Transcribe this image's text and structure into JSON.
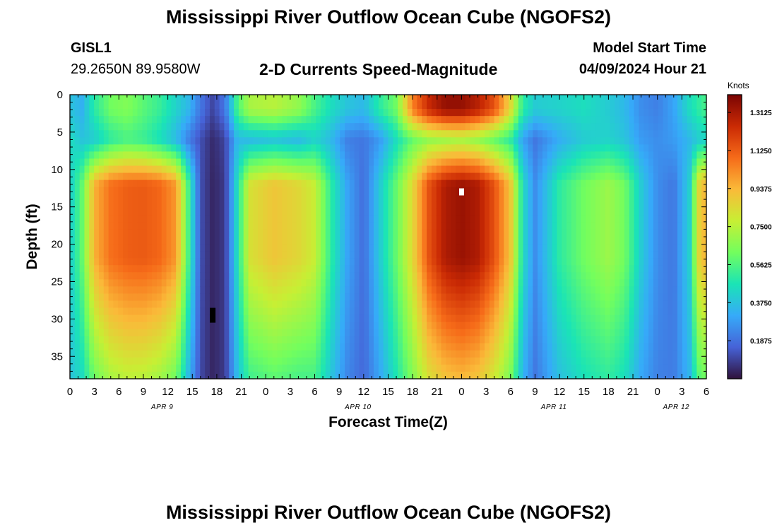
{
  "page": {
    "title": "Mississippi River Outflow Ocean Cube (NGOFS2)",
    "station_id": "GISL1",
    "station_coords": "29.2650N  89.9580W",
    "plot_title": "2-D Currents Speed-Magnitude",
    "model_start_label": "Model Start Time",
    "model_start_value": "04/09/2024 Hour 21",
    "footer_title": "Mississippi River Outflow Ocean Cube (NGOFS2)"
  },
  "chart_data": {
    "type": "heatmap",
    "title": "2-D Currents Speed-Magnitude",
    "xlabel": "Forecast Time(Z)",
    "ylabel": "Depth (ft)",
    "x_range_hours": [
      0,
      78
    ],
    "ylim": [
      0,
      38
    ],
    "y_inverted": true,
    "x_ticks": [
      "0",
      "3",
      "6",
      "9",
      "12",
      "15",
      "18",
      "21",
      "0",
      "3",
      "6",
      "9",
      "12",
      "15",
      "18",
      "21",
      "0",
      "3",
      "6",
      "9",
      "12",
      "15",
      "18",
      "21",
      "0",
      "3",
      "6"
    ],
    "y_ticks": [
      "0",
      "5",
      "10",
      "15",
      "20",
      "25",
      "30",
      "35"
    ],
    "y_tick_values": [
      0,
      5,
      10,
      15,
      20,
      25,
      30,
      35
    ],
    "date_labels": [
      {
        "label": "APR 9",
        "hour": 12
      },
      {
        "label": "APR 10",
        "hour": 36
      },
      {
        "label": "APR 11",
        "hour": 60
      },
      {
        "label": "APR 12",
        "hour": 75
      }
    ],
    "colorbar": {
      "label": "Knots",
      "min": 0.0,
      "max": 1.4,
      "ticks": [
        "1.3125",
        "1.1250",
        "0.9375",
        "0.7500",
        "0.5625",
        "0.3750",
        "0.1875"
      ],
      "tick_values": [
        1.3125,
        1.125,
        0.9375,
        0.75,
        0.5625,
        0.375,
        0.1875
      ],
      "colors": [
        "#30123b",
        "#4662d7",
        "#36aaf9",
        "#1ae4b6",
        "#72fe5e",
        "#c7ef34",
        "#faba39",
        "#f66b19",
        "#ca2a04",
        "#7a0403"
      ]
    },
    "time_profiles": [
      {
        "hour": 0,
        "surface": 0.38,
        "sub": 0.45,
        "deep": 0.4
      },
      {
        "hour": 1.5,
        "surface": 0.33,
        "sub": 0.38,
        "deep": 0.6
      },
      {
        "hour": 3,
        "surface": 0.5,
        "sub": 0.4,
        "deep": 0.95
      },
      {
        "hour": 5,
        "surface": 0.62,
        "sub": 0.5,
        "deep": 1.08
      },
      {
        "hour": 7,
        "surface": 0.65,
        "sub": 0.55,
        "deep": 1.12
      },
      {
        "hour": 9,
        "surface": 0.58,
        "sub": 0.52,
        "deep": 1.13
      },
      {
        "hour": 11,
        "surface": 0.52,
        "sub": 0.45,
        "deep": 1.1
      },
      {
        "hour": 13,
        "surface": 0.42,
        "sub": 0.35,
        "deep": 1.0
      },
      {
        "hour": 14.5,
        "surface": 0.35,
        "sub": 0.22,
        "deep": 0.55
      },
      {
        "hour": 16,
        "surface": 0.2,
        "sub": 0.12,
        "deep": 0.12
      },
      {
        "hour": 17.5,
        "surface": 0.1,
        "sub": 0.05,
        "deep": 0.04
      },
      {
        "hour": 19,
        "surface": 0.2,
        "sub": 0.1,
        "deep": 0.08
      },
      {
        "hour": 20.5,
        "surface": 0.55,
        "sub": 0.35,
        "deep": 0.45
      },
      {
        "hour": 22,
        "surface": 0.72,
        "sub": 0.35,
        "deep": 0.82
      },
      {
        "hour": 25,
        "surface": 0.75,
        "sub": 0.38,
        "deep": 0.9
      },
      {
        "hour": 28,
        "surface": 0.68,
        "sub": 0.35,
        "deep": 0.85
      },
      {
        "hour": 30,
        "surface": 0.55,
        "sub": 0.42,
        "deep": 0.78
      },
      {
        "hour": 32,
        "surface": 0.45,
        "sub": 0.35,
        "deep": 0.5
      },
      {
        "hour": 34,
        "surface": 0.38,
        "sub": 0.22,
        "deep": 0.3
      },
      {
        "hour": 36,
        "surface": 0.35,
        "sub": 0.2,
        "deep": 0.18
      },
      {
        "hour": 38,
        "surface": 0.5,
        "sub": 0.28,
        "deep": 0.4
      },
      {
        "hour": 40,
        "surface": 0.62,
        "sub": 0.45,
        "deep": 0.6
      },
      {
        "hour": 42,
        "surface": 1.05,
        "sub": 0.6,
        "deep": 0.85
      },
      {
        "hour": 44,
        "surface": 1.25,
        "sub": 0.68,
        "deep": 1.15
      },
      {
        "hour": 46,
        "surface": 1.35,
        "sub": 0.7,
        "deep": 1.3
      },
      {
        "hour": 48,
        "surface": 1.35,
        "sub": 0.72,
        "deep": 1.34
      },
      {
        "hour": 50,
        "surface": 1.28,
        "sub": 0.68,
        "deep": 1.3
      },
      {
        "hour": 52,
        "surface": 1.15,
        "sub": 0.6,
        "deep": 1.15
      },
      {
        "hour": 54,
        "surface": 0.85,
        "sub": 0.5,
        "deep": 0.9
      },
      {
        "hour": 55.5,
        "surface": 0.5,
        "sub": 0.3,
        "deep": 0.45
      },
      {
        "hour": 57,
        "surface": 0.4,
        "sub": 0.2,
        "deep": 0.25
      },
      {
        "hour": 60,
        "surface": 0.42,
        "sub": 0.32,
        "deep": 0.5
      },
      {
        "hour": 63,
        "surface": 0.45,
        "sub": 0.4,
        "deep": 0.62
      },
      {
        "hour": 66,
        "surface": 0.4,
        "sub": 0.42,
        "deep": 0.7
      },
      {
        "hour": 68,
        "surface": 0.35,
        "sub": 0.38,
        "deep": 0.62
      },
      {
        "hour": 70,
        "surface": 0.25,
        "sub": 0.28,
        "deep": 0.4
      },
      {
        "hour": 72,
        "surface": 0.22,
        "sub": 0.25,
        "deep": 0.25
      },
      {
        "hour": 74,
        "surface": 0.3,
        "sub": 0.28,
        "deep": 0.2
      },
      {
        "hour": 76,
        "surface": 0.45,
        "sub": 0.35,
        "deep": 0.42
      },
      {
        "hour": 77,
        "surface": 0.5,
        "sub": 0.4,
        "deep": 0.85
      },
      {
        "hour": 78,
        "surface": 0.55,
        "sub": 0.42,
        "deep": 0.95
      }
    ],
    "annotations": [
      {
        "type": "marker",
        "color": "#000000",
        "hour": 17.5,
        "depth": 29.5
      },
      {
        "type": "marker",
        "color": "#ffffff",
        "hour": 48,
        "depth": 13.0
      }
    ]
  }
}
